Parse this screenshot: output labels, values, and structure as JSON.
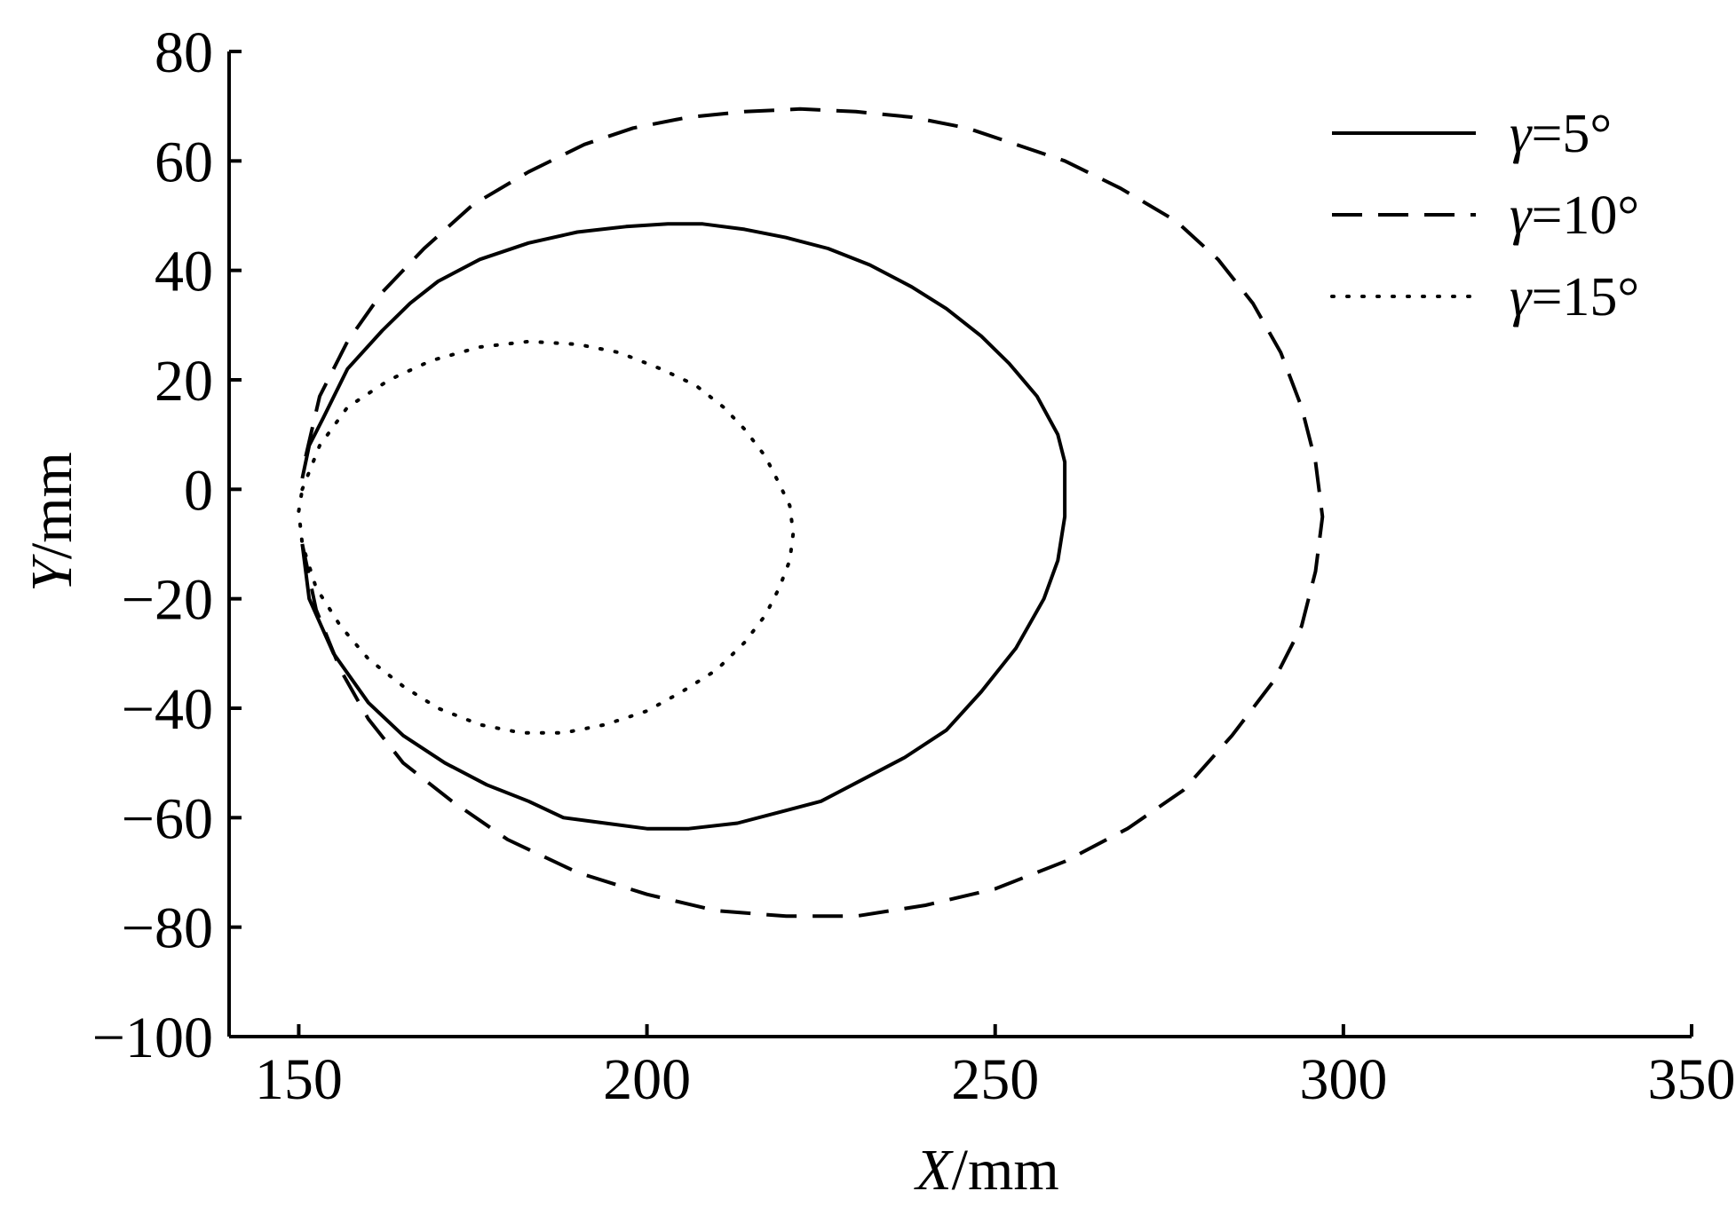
{
  "chart_data": {
    "type": "line",
    "title": "",
    "xlabel": "X/mm",
    "xlabel_var": "X",
    "xlabel_unit": "/mm",
    "ylabel": "Y/mm",
    "ylabel_var": "Y",
    "ylabel_unit": "/mm",
    "xlim": [
      140,
      350
    ],
    "ylim": [
      -100,
      80
    ],
    "xticks": [
      150,
      200,
      250,
      300,
      350
    ],
    "yticks": [
      80,
      60,
      40,
      20,
      0,
      -20,
      -40,
      -60,
      -80,
      -100
    ],
    "xtick_labels": [
      "150",
      "200",
      "250",
      "300",
      "350"
    ],
    "ytick_labels": [
      "80",
      "60",
      "40",
      "20",
      "0",
      "−20",
      "−40",
      "−60",
      "−80",
      "−100"
    ],
    "grid": false,
    "legend_position": "top-right",
    "series": [
      {
        "name": "γ=5°",
        "name_var": "γ",
        "name_rest": "=5°",
        "style": "solid",
        "x": [
          150.5,
          151.5,
          153.5,
          157,
          162,
          166,
          170,
          176,
          183,
          190,
          197,
          203,
          208,
          214,
          220,
          226,
          232,
          238,
          243,
          248,
          252,
          256,
          259,
          260,
          260,
          259,
          257,
          253,
          248,
          243,
          237,
          231,
          225,
          219,
          213,
          206,
          200,
          194,
          188,
          183,
          177,
          171,
          165,
          160,
          155,
          151.5,
          150.5
        ],
        "y": [
          2,
          8,
          13,
          22,
          29,
          34,
          38,
          42,
          45,
          47,
          48,
          48.5,
          48.5,
          47.5,
          46,
          44,
          41,
          37,
          33,
          28,
          23,
          17,
          10,
          5,
          -5,
          -13,
          -20,
          -29,
          -37,
          -44,
          -49,
          -53,
          -57,
          -59,
          -61,
          -62,
          -62,
          -61,
          -60,
          -57,
          -54,
          -50,
          -45,
          -39,
          -30,
          -20,
          -10
        ]
      },
      {
        "name": "γ=10°",
        "name_var": "γ",
        "name_rest": "=10°",
        "style": "dashed",
        "x": [
          151,
          153,
          157,
          162,
          168,
          175,
          183,
          191,
          198,
          206,
          214,
          222,
          230,
          238,
          246,
          253,
          260,
          268,
          276,
          282,
          287,
          291,
          294,
          296,
          297,
          296,
          294,
          290,
          284,
          277,
          269,
          260,
          250,
          240,
          230,
          220,
          210,
          200,
          190,
          180,
          172,
          165,
          160,
          156,
          152.5,
          150.5
        ],
        "y": [
          6,
          17,
          27,
          36,
          44,
          52,
          58,
          63,
          66,
          68,
          69,
          69.5,
          69,
          68,
          66,
          63,
          60,
          55,
          49,
          42,
          34,
          25,
          15,
          5,
          -5,
          -15,
          -25,
          -35,
          -45,
          -55,
          -62,
          -68,
          -73,
          -76,
          -78,
          -78,
          -77,
          -74,
          -70,
          -64,
          -57,
          -50,
          -42,
          -33,
          -22,
          -10
        ]
      },
      {
        "name": "γ=15°",
        "name_var": "γ",
        "name_rest": "=15°",
        "style": "dotted",
        "x": [
          150.5,
          153,
          157,
          163,
          169,
          176,
          183,
          190,
          196,
          202,
          207,
          211,
          214,
          217,
          219,
          220.5,
          221,
          220.5,
          219,
          217,
          214,
          210,
          205,
          200,
          194,
          188,
          182,
          176,
          170,
          165,
          160,
          156,
          152.5,
          150.5,
          150,
          150.5
        ],
        "y": [
          0,
          8,
          15,
          20,
          23.5,
          26,
          27,
          26.5,
          25,
          22,
          19,
          15,
          11,
          6,
          1,
          -3,
          -8,
          -13,
          -18,
          -23,
          -28,
          -33,
          -37,
          -40.5,
          -43,
          -44.5,
          -44.5,
          -43,
          -40,
          -36,
          -31,
          -25,
          -18,
          -10,
          -4,
          0
        ]
      }
    ]
  }
}
